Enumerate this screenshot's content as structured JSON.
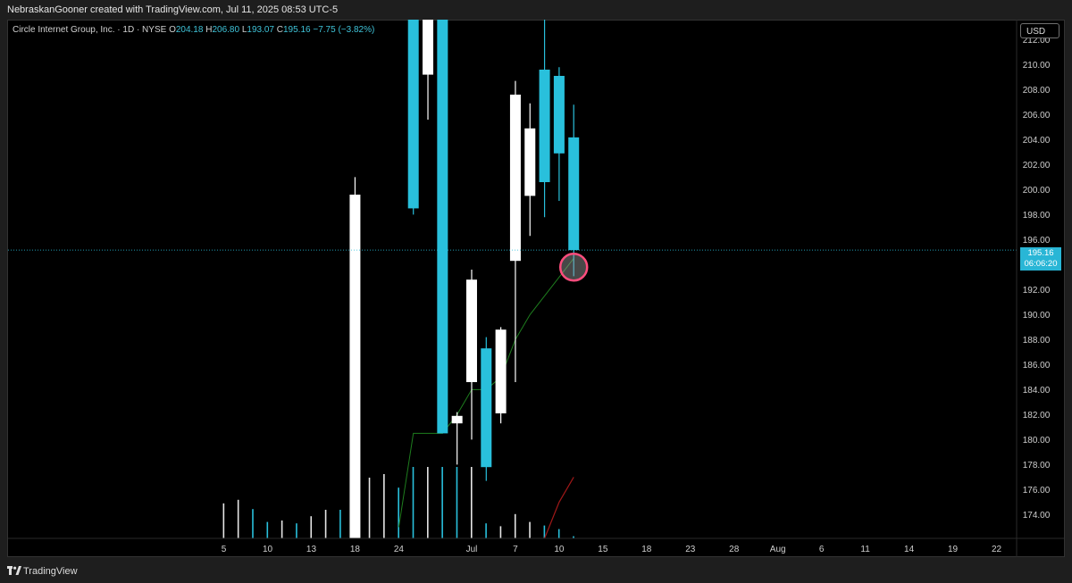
{
  "header": {
    "credit": "NebraskanGooner created with TradingView.com, Jul 11, 2025 08:53 UTC-5"
  },
  "legend": {
    "symbol": "Circle Internet Group, Inc. · 1D · NYSE",
    "open_label": "O",
    "open": "204.18",
    "high_label": "H",
    "high": "206.80",
    "low_label": "L",
    "low": "193.07",
    "close_label": "C",
    "close": "195.16",
    "change": "−7.75 (−3.82%)"
  },
  "price_scale": {
    "currency": "USD"
  },
  "price_tag": {
    "price": "195.16",
    "countdown": "06:06:20"
  },
  "footer": {
    "brand": "TradingView"
  },
  "colors": {
    "bull": "#ffffff",
    "bear": "#29c0dc",
    "ma_green": "#1e7d1e",
    "ma_red": "#a01818",
    "marker": "#ff4d7d"
  },
  "chart_data": {
    "type": "candlestick",
    "y_range": [
      172.1,
      213.6
    ],
    "y_ticks": [
      "174.00",
      "176.00",
      "178.00",
      "180.00",
      "182.00",
      "184.00",
      "186.00",
      "188.00",
      "190.00",
      "192.00",
      "194.00",
      "196.00",
      "198.00",
      "200.00",
      "202.00",
      "204.00",
      "206.00",
      "208.00",
      "210.00",
      "212.00"
    ],
    "x_ticks": [
      {
        "label": "5",
        "slot": -3
      },
      {
        "label": "10",
        "slot": 0
      },
      {
        "label": "13",
        "slot": 3
      },
      {
        "label": "18",
        "slot": 6
      },
      {
        "label": "24",
        "slot": 9
      },
      {
        "label": "Jul",
        "slot": 14
      },
      {
        "label": "7",
        "slot": 17
      },
      {
        "label": "10",
        "slot": 20
      },
      {
        "label": "15",
        "slot": 23
      },
      {
        "label": "18",
        "slot": 26
      },
      {
        "label": "23",
        "slot": 29
      },
      {
        "label": "28",
        "slot": 32
      },
      {
        "label": "Aug",
        "slot": 35
      },
      {
        "label": "6",
        "slot": 38
      },
      {
        "label": "11",
        "slot": 41
      },
      {
        "label": "14",
        "slot": 44
      },
      {
        "label": "19",
        "slot": 47
      },
      {
        "label": "22",
        "slot": 50
      }
    ],
    "candles": [
      {
        "slot": 6,
        "o": 172.1,
        "h": 201.0,
        "l": 172.1,
        "c": 199.6
      },
      {
        "slot": 10,
        "o": 213.6,
        "h": 213.6,
        "l": 198.0,
        "c": 198.5
      },
      {
        "slot": 11,
        "o": 209.2,
        "h": 213.6,
        "l": 205.6,
        "c": 213.6
      },
      {
        "slot": 12,
        "o": 213.6,
        "h": 213.6,
        "l": 180.5,
        "c": 180.5
      },
      {
        "slot": 13,
        "o": 181.3,
        "h": 182.2,
        "l": 178.0,
        "c": 181.9
      },
      {
        "slot": 14,
        "o": 184.6,
        "h": 193.6,
        "l": 180.0,
        "c": 192.8
      },
      {
        "slot": 15,
        "o": 187.3,
        "h": 188.2,
        "l": 176.7,
        "c": 177.8
      },
      {
        "slot": 16,
        "o": 182.1,
        "h": 189.0,
        "l": 181.3,
        "c": 188.8
      },
      {
        "slot": 17,
        "o": 194.3,
        "h": 208.7,
        "l": 184.6,
        "c": 207.6
      },
      {
        "slot": 18,
        "o": 199.5,
        "h": 206.9,
        "l": 196.3,
        "c": 204.9
      },
      {
        "slot": 19,
        "o": 209.6,
        "h": 213.6,
        "l": 197.8,
        "c": 200.6
      },
      {
        "slot": 20,
        "o": 209.1,
        "h": 209.8,
        "l": 199.1,
        "c": 202.9
      },
      {
        "slot": 21,
        "o": 204.18,
        "h": 206.8,
        "l": 193.07,
        "c": 195.16
      }
    ],
    "volume": [
      {
        "slot": -3,
        "v": 0.49,
        "up": true
      },
      {
        "slot": -2,
        "v": 0.54,
        "up": true
      },
      {
        "slot": -1,
        "v": 0.41,
        "up": false
      },
      {
        "slot": 0,
        "v": 0.23,
        "up": false
      },
      {
        "slot": 1,
        "v": 0.25,
        "up": true
      },
      {
        "slot": 2,
        "v": 0.21,
        "up": false
      },
      {
        "slot": 3,
        "v": 0.31,
        "up": true
      },
      {
        "slot": 4,
        "v": 0.4,
        "up": true
      },
      {
        "slot": 5,
        "v": 0.4,
        "up": false
      },
      {
        "slot": 6,
        "v": 1.0,
        "up": true
      },
      {
        "slot": 7,
        "v": 0.85,
        "up": true
      },
      {
        "slot": 8,
        "v": 0.9,
        "up": true
      },
      {
        "slot": 9,
        "v": 0.71,
        "up": false
      },
      {
        "slot": 10,
        "v": 1.0,
        "up": false
      },
      {
        "slot": 11,
        "v": 1.0,
        "up": true
      },
      {
        "slot": 12,
        "v": 1.0,
        "up": false
      },
      {
        "slot": 13,
        "v": 1.0,
        "up": false
      },
      {
        "slot": 14,
        "v": 1.0,
        "up": true
      },
      {
        "slot": 15,
        "v": 0.21,
        "up": false
      },
      {
        "slot": 16,
        "v": 0.17,
        "up": true
      },
      {
        "slot": 17,
        "v": 0.34,
        "up": true
      },
      {
        "slot": 18,
        "v": 0.23,
        "up": true
      },
      {
        "slot": 19,
        "v": 0.18,
        "up": false
      },
      {
        "slot": 20,
        "v": 0.13,
        "up": false
      },
      {
        "slot": 21,
        "v": 0.03,
        "up": false
      }
    ],
    "ma_green": [
      [
        9,
        173.0
      ],
      [
        10,
        180.5
      ],
      [
        11,
        180.5
      ],
      [
        12,
        180.5
      ],
      [
        13,
        182.0
      ],
      [
        14,
        184.0
      ],
      [
        15,
        184.0
      ],
      [
        16,
        185.0
      ],
      [
        17,
        188.0
      ],
      [
        18,
        190.0
      ],
      [
        19,
        191.5
      ],
      [
        20,
        193.0
      ],
      [
        21,
        194.5
      ]
    ],
    "ma_red": [
      [
        19,
        172.1
      ],
      [
        20,
        175.0
      ],
      [
        21,
        177.0
      ]
    ],
    "current_price": 195.16,
    "marker": {
      "slot": 21,
      "price": 193.8
    }
  }
}
